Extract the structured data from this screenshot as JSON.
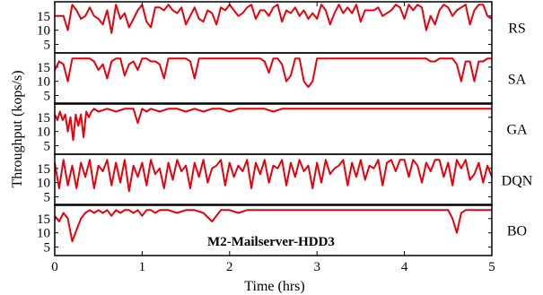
{
  "chart_data": {
    "type": "line",
    "title": "M2-Mailserver-HDD3",
    "xlabel": "Time (hrs)",
    "ylabel": "Throughput (kops/s)",
    "xlim": [
      0,
      5
    ],
    "x_ticks": [
      "0",
      "1",
      "2",
      "3",
      "4",
      "5"
    ],
    "ylim": [
      2,
      20
    ],
    "y_ticks": [
      "5",
      "10",
      "15"
    ],
    "line_color": "#e8000b",
    "frame_color": "#000000",
    "series": [
      {
        "name": "RS",
        "x": [
          0.0,
          0.1,
          0.15,
          0.2,
          0.25,
          0.3,
          0.35,
          0.4,
          0.45,
          0.5,
          0.55,
          0.6,
          0.65,
          0.7,
          0.75,
          0.8,
          0.85,
          0.9,
          0.95,
          1.0,
          1.05,
          1.1,
          1.15,
          1.2,
          1.25,
          1.3,
          1.35,
          1.4,
          1.45,
          1.5,
          1.55,
          1.6,
          1.65,
          1.7,
          1.75,
          1.8,
          1.85,
          1.9,
          1.95,
          2.0,
          2.05,
          2.1,
          2.15,
          2.2,
          2.25,
          2.3,
          2.35,
          2.4,
          2.45,
          2.5,
          2.55,
          2.6,
          2.65,
          2.7,
          2.75,
          2.8,
          2.85,
          2.9,
          2.95,
          3.0,
          3.05,
          3.1,
          3.15,
          3.2,
          3.25,
          3.3,
          3.35,
          3.4,
          3.45,
          3.5,
          3.55,
          3.6,
          3.65,
          3.7,
          3.75,
          3.8,
          3.85,
          3.9,
          3.95,
          4.0,
          4.05,
          4.1,
          4.15,
          4.2,
          4.25,
          4.3,
          4.35,
          4.4,
          4.45,
          4.5,
          4.55,
          4.6,
          4.65,
          4.7,
          4.75,
          4.8,
          4.85,
          4.9,
          4.95,
          5.0
        ],
        "values": [
          15,
          15,
          10,
          19,
          17,
          14,
          15,
          18,
          15,
          14,
          12,
          17,
          9,
          19,
          14,
          16,
          11,
          14,
          17,
          19,
          13,
          11,
          18,
          18,
          17,
          19,
          17,
          16,
          18,
          12,
          15,
          18,
          14,
          13,
          17,
          16,
          12,
          18,
          17,
          19,
          17,
          15,
          16,
          18,
          19,
          14,
          17,
          17,
          15,
          18,
          19,
          13,
          17,
          16,
          18,
          15,
          17,
          14,
          16,
          14,
          19,
          17,
          12,
          16,
          19,
          16,
          18,
          16,
          19,
          13,
          17,
          17,
          17,
          18,
          15,
          16,
          17,
          19,
          18,
          14,
          19,
          17,
          19,
          18,
          10,
          15,
          12,
          17,
          19,
          18,
          15,
          17,
          18,
          19,
          12,
          17,
          19,
          19,
          15,
          14
        ]
      },
      {
        "name": "SA",
        "x": [
          0.0,
          0.05,
          0.1,
          0.15,
          0.2,
          0.25,
          0.3,
          0.35,
          0.4,
          0.45,
          0.5,
          0.55,
          0.6,
          0.65,
          0.7,
          0.75,
          0.8,
          0.85,
          0.9,
          0.95,
          1.0,
          1.05,
          1.1,
          1.15,
          1.2,
          1.25,
          1.3,
          1.35,
          1.4,
          1.45,
          1.5,
          1.55,
          1.6,
          1.65,
          1.7,
          1.75,
          1.8,
          1.85,
          1.9,
          1.95,
          2.0,
          2.05,
          2.1,
          2.15,
          2.2,
          2.25,
          2.3,
          2.35,
          2.4,
          2.45,
          2.5,
          2.55,
          2.6,
          2.65,
          2.7,
          2.75,
          2.8,
          2.85,
          2.9,
          2.95,
          3.0,
          3.05,
          3.1,
          3.15,
          3.2,
          3.25,
          3.3,
          3.35,
          3.4,
          3.45,
          3.5,
          3.55,
          3.6,
          3.65,
          3.7,
          3.75,
          3.8,
          3.85,
          3.9,
          3.95,
          4.0,
          4.05,
          4.1,
          4.15,
          4.2,
          4.25,
          4.3,
          4.35,
          4.4,
          4.45,
          4.5,
          4.55,
          4.6,
          4.65,
          4.7,
          4.75,
          4.8,
          4.85,
          4.9,
          4.95,
          5.0
        ],
        "values": [
          14,
          17,
          16,
          10,
          18,
          18,
          18,
          18,
          18,
          17,
          14,
          16,
          11,
          17,
          18,
          18,
          12,
          16,
          17,
          14,
          18,
          18,
          17,
          17,
          16,
          11,
          18,
          18,
          18,
          18,
          18,
          17,
          11,
          18,
          18,
          18,
          18,
          18,
          18,
          18,
          18,
          18,
          18,
          18,
          18,
          18,
          18,
          18,
          17,
          13,
          18,
          18,
          16,
          10,
          12,
          18,
          18,
          10,
          8,
          10,
          18,
          18,
          18,
          18,
          18,
          18,
          18,
          18,
          18,
          18,
          18,
          18,
          18,
          18,
          18,
          18,
          18,
          18,
          18,
          18,
          18,
          18,
          18,
          18,
          18,
          18,
          17,
          17,
          18,
          18,
          18,
          18,
          16,
          10,
          17,
          17,
          10,
          17,
          17,
          18,
          18
        ]
      },
      {
        "name": "GA",
        "x": [
          0.0,
          0.03,
          0.06,
          0.09,
          0.12,
          0.15,
          0.18,
          0.21,
          0.24,
          0.27,
          0.3,
          0.33,
          0.36,
          0.39,
          0.42,
          0.45,
          0.5,
          0.6,
          0.7,
          0.8,
          0.9,
          0.95,
          1.0,
          1.05,
          1.1,
          1.2,
          1.3,
          1.4,
          1.5,
          1.6,
          1.7,
          1.8,
          1.9,
          2.0,
          2.1,
          2.2,
          2.3,
          2.4,
          2.5,
          2.6,
          2.7,
          2.8,
          2.9,
          3.0,
          3.1,
          3.2,
          3.3,
          3.4,
          3.5,
          3.6,
          3.7,
          3.8,
          3.9,
          4.0,
          4.1,
          4.2,
          4.3,
          4.4,
          4.5,
          4.6,
          4.7,
          4.8,
          4.9,
          5.0
        ],
        "values": [
          16,
          14,
          17,
          14,
          16,
          10,
          15,
          7,
          16,
          12,
          16,
          8,
          17,
          15,
          17,
          18,
          17,
          18,
          17,
          18,
          18,
          13,
          18,
          17,
          18,
          17,
          18,
          18,
          17,
          18,
          17,
          18,
          18,
          17,
          18,
          18,
          18,
          18,
          17,
          18,
          18,
          18,
          18,
          18,
          18,
          18,
          18,
          18,
          18,
          18,
          18,
          18,
          18,
          18,
          18,
          18,
          18,
          18,
          18,
          18,
          18,
          18,
          18,
          18
        ]
      },
      {
        "name": "DQN",
        "x": [
          0.0,
          0.05,
          0.1,
          0.15,
          0.2,
          0.25,
          0.3,
          0.35,
          0.4,
          0.45,
          0.5,
          0.55,
          0.6,
          0.65,
          0.7,
          0.75,
          0.8,
          0.85,
          0.9,
          0.95,
          1.0,
          1.05,
          1.1,
          1.15,
          1.2,
          1.25,
          1.3,
          1.35,
          1.4,
          1.45,
          1.5,
          1.55,
          1.6,
          1.65,
          1.7,
          1.75,
          1.8,
          1.85,
          1.9,
          1.95,
          2.0,
          2.05,
          2.1,
          2.15,
          2.2,
          2.25,
          2.3,
          2.35,
          2.4,
          2.45,
          2.5,
          2.55,
          2.6,
          2.65,
          2.7,
          2.75,
          2.8,
          2.85,
          2.9,
          2.95,
          3.0,
          3.05,
          3.1,
          3.15,
          3.2,
          3.25,
          3.3,
          3.35,
          3.4,
          3.45,
          3.5,
          3.55,
          3.6,
          3.65,
          3.7,
          3.75,
          3.8,
          3.85,
          3.9,
          3.95,
          4.0,
          4.05,
          4.1,
          4.15,
          4.2,
          4.25,
          4.3,
          4.35,
          4.4,
          4.45,
          4.5,
          4.55,
          4.6,
          4.65,
          4.7,
          4.75,
          4.8,
          4.85,
          4.9,
          4.95,
          5.0
        ],
        "values": [
          17,
          8,
          18,
          9,
          16,
          8,
          17,
          12,
          18,
          8,
          16,
          14,
          18,
          9,
          17,
          10,
          18,
          7,
          16,
          12,
          17,
          9,
          18,
          13,
          15,
          8,
          17,
          11,
          18,
          14,
          16,
          8,
          17,
          12,
          18,
          10,
          15,
          16,
          18,
          9,
          17,
          12,
          16,
          14,
          18,
          8,
          17,
          13,
          18,
          10,
          16,
          15,
          18,
          9,
          17,
          12,
          18,
          14,
          16,
          8,
          17,
          10,
          18,
          13,
          15,
          16,
          18,
          9,
          17,
          12,
          18,
          11,
          16,
          15,
          18,
          9,
          17,
          18,
          14,
          18,
          18,
          12,
          18,
          16,
          10,
          17,
          14,
          18,
          18,
          12,
          17,
          9,
          18,
          15,
          18,
          11,
          13,
          17,
          10,
          16,
          12
        ]
      },
      {
        "name": "BO",
        "x": [
          0.0,
          0.05,
          0.1,
          0.15,
          0.2,
          0.25,
          0.3,
          0.35,
          0.4,
          0.45,
          0.5,
          0.55,
          0.6,
          0.65,
          0.7,
          0.75,
          0.8,
          0.85,
          0.9,
          0.95,
          1.0,
          1.05,
          1.1,
          1.15,
          1.2,
          1.3,
          1.4,
          1.5,
          1.6,
          1.7,
          1.8,
          1.9,
          2.0,
          2.1,
          2.2,
          2.3,
          2.4,
          2.5,
          2.6,
          2.7,
          2.8,
          2.9,
          3.0,
          3.1,
          3.2,
          3.3,
          3.4,
          3.5,
          3.6,
          3.7,
          3.8,
          3.9,
          4.0,
          4.1,
          4.2,
          4.3,
          4.4,
          4.5,
          4.55,
          4.6,
          4.65,
          4.7,
          4.8,
          4.9,
          5.0
        ],
        "values": [
          16,
          14,
          17,
          15,
          7,
          11,
          15,
          17,
          18,
          17,
          18,
          17,
          18,
          16,
          18,
          17,
          18,
          18,
          17,
          18,
          16,
          18,
          18,
          17,
          18,
          18,
          17,
          18,
          18,
          17,
          14,
          18,
          18,
          17,
          18,
          18,
          18,
          18,
          18,
          18,
          18,
          18,
          18,
          18,
          18,
          18,
          18,
          18,
          18,
          18,
          18,
          18,
          18,
          18,
          18,
          18,
          18,
          18,
          15,
          10,
          17,
          18,
          18,
          18,
          18
        ]
      }
    ]
  }
}
